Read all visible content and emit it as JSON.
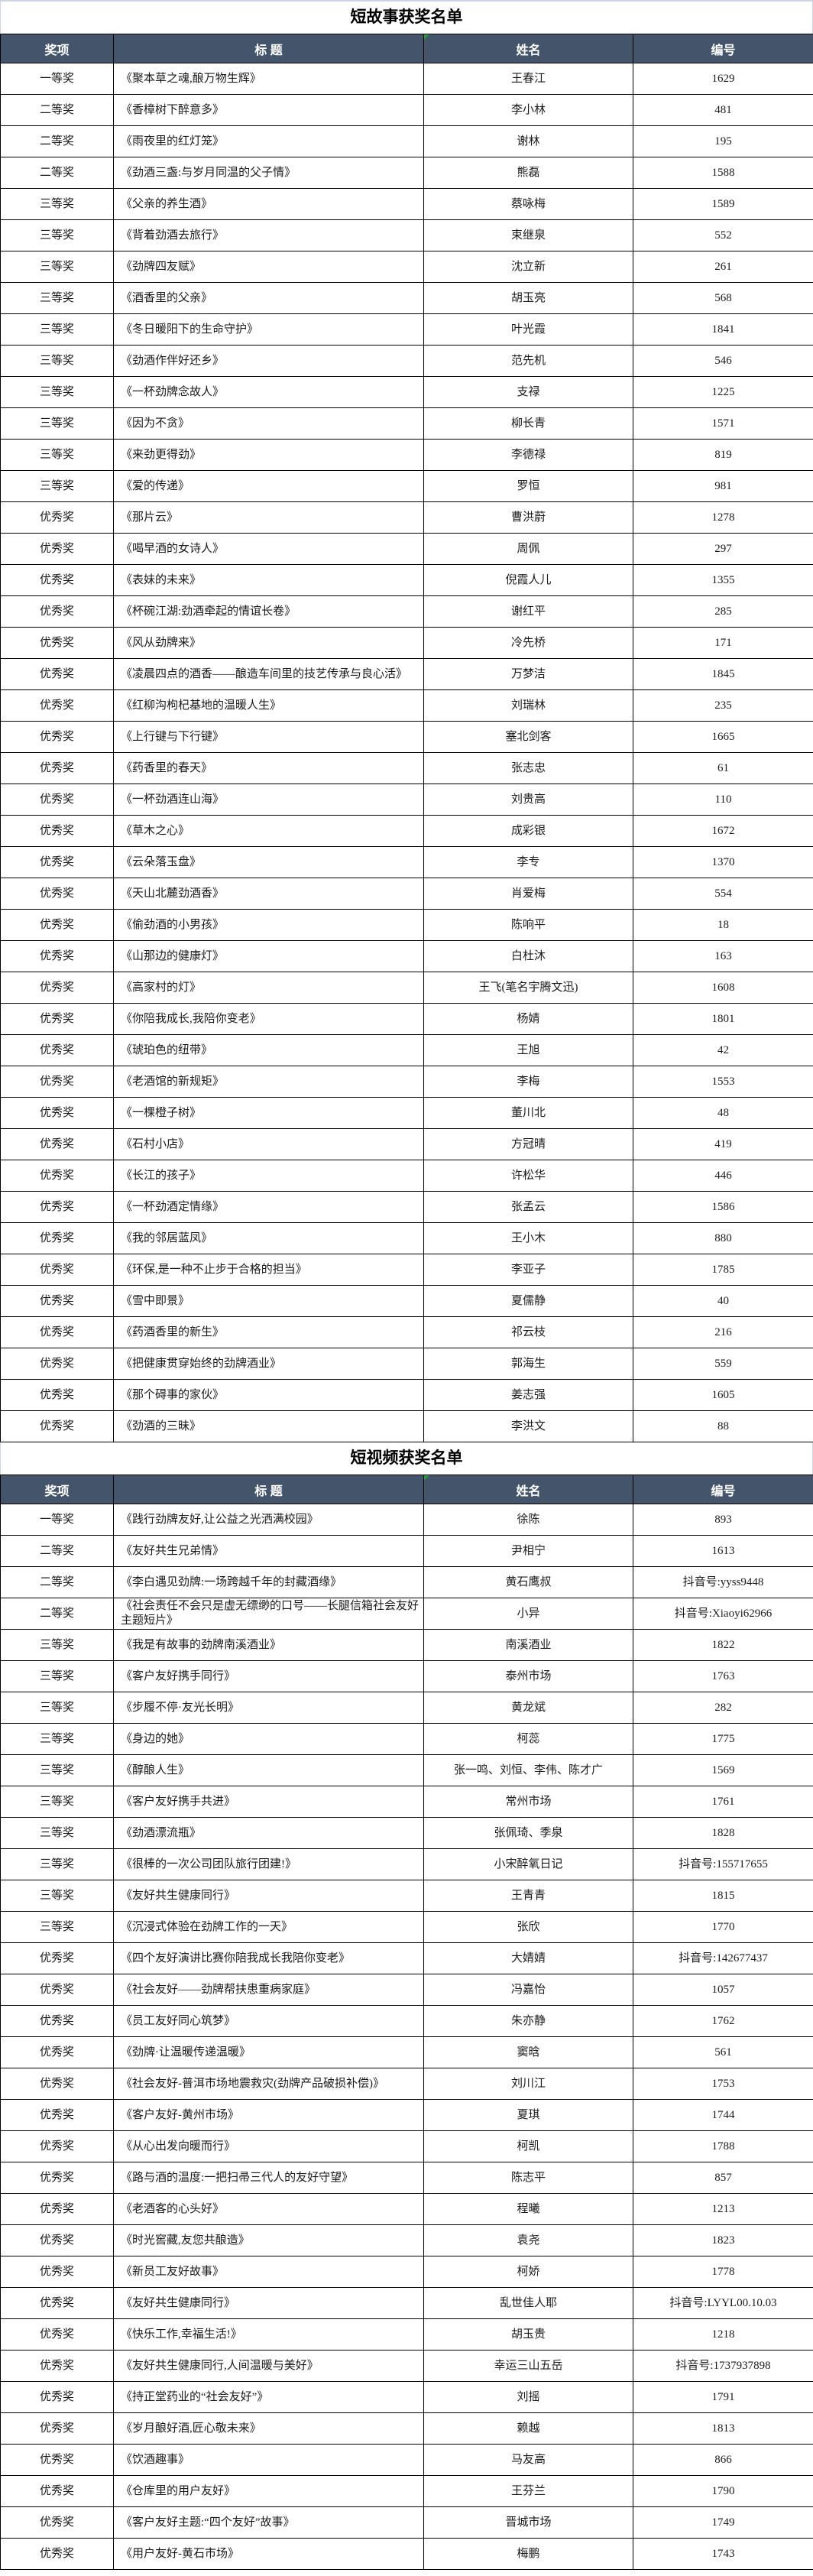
{
  "colors": {
    "header_bg": "#44546A",
    "header_text": "#FFFFFF",
    "cell_border": "#000000",
    "sheet_gridline": "#CCD5E3",
    "corner_flag_green": "#21A038"
  },
  "tables": [
    {
      "title": "短故事获奖名单",
      "headers": [
        "奖项",
        "标  题",
        "姓名",
        "编号"
      ],
      "rows": [
        [
          "一等奖",
          "《聚本草之魂,酿万物生辉》",
          "王春江",
          "1629"
        ],
        [
          "二等奖",
          "《香樟树下醉意多》",
          "李小林",
          "481"
        ],
        [
          "二等奖",
          "《雨夜里的红灯笼》",
          "谢林",
          "195"
        ],
        [
          "二等奖",
          "《劲酒三盏:与岁月同温的父子情》",
          "熊磊",
          "1588"
        ],
        [
          "三等奖",
          "《父亲的养生酒》",
          "蔡咏梅",
          "1589"
        ],
        [
          "三等奖",
          "《背着劲酒去旅行》",
          "束继泉",
          "552"
        ],
        [
          "三等奖",
          "《劲牌四友赋》",
          "沈立新",
          "261"
        ],
        [
          "三等奖",
          "《酒香里的父亲》",
          "胡玉亮",
          "568"
        ],
        [
          "三等奖",
          "《冬日暖阳下的生命守护》",
          "叶光霞",
          "1841"
        ],
        [
          "三等奖",
          "《劲酒作伴好还乡》",
          "范先机",
          "546"
        ],
        [
          "三等奖",
          "《一杯劲牌念故人》",
          "支禄",
          "1225"
        ],
        [
          "三等奖",
          "《因为不贪》",
          "柳长青",
          "1571"
        ],
        [
          "三等奖",
          "《来劲更得劲》",
          "李德禄",
          "819"
        ],
        [
          "三等奖",
          "《爱的传递》",
          "罗恒",
          "981"
        ],
        [
          "优秀奖",
          "《那片云》",
          "曹洪蔚",
          "1278"
        ],
        [
          "优秀奖",
          "《喝早酒的女诗人》",
          "周佩",
          "297"
        ],
        [
          "优秀奖",
          "《表妹的未来》",
          "倪霞人儿",
          "1355"
        ],
        [
          "优秀奖",
          "《杯碗江湖:劲酒牵起的情谊长卷》",
          "谢红平",
          "285"
        ],
        [
          "优秀奖",
          "《风从劲牌来》",
          "冷先桥",
          "171"
        ],
        [
          "优秀奖",
          "《凌晨四点的酒香——酿造车间里的技艺传承与良心活》",
          "万梦洁",
          "1845"
        ],
        [
          "优秀奖",
          "《红柳沟枸杞基地的温暖人生》",
          "刘瑞林",
          "235"
        ],
        [
          "优秀奖",
          "《上行键与下行键》",
          "塞北剑客",
          "1665"
        ],
        [
          "优秀奖",
          "《药香里的春天》",
          "张志忠",
          "61"
        ],
        [
          "优秀奖",
          "《一杯劲酒连山海》",
          "刘贵高",
          "110"
        ],
        [
          "优秀奖",
          "《草木之心》",
          "成彩银",
          "1672"
        ],
        [
          "优秀奖",
          "《云朵落玉盘》",
          "李专",
          "1370"
        ],
        [
          "优秀奖",
          "《天山北麓劲酒香》",
          "肖爱梅",
          "554"
        ],
        [
          "优秀奖",
          "《偷劲酒的小男孩》",
          "陈响平",
          "18"
        ],
        [
          "优秀奖",
          "《山那边的健康灯》",
          "白杜沐",
          "163"
        ],
        [
          "优秀奖",
          "《高家村的灯》",
          "王飞(笔名宇腾文迅)",
          "1608"
        ],
        [
          "优秀奖",
          "《你陪我成长,我陪你变老》",
          "杨婧",
          "1801"
        ],
        [
          "优秀奖",
          "《琥珀色的纽带》",
          "王旭",
          "42"
        ],
        [
          "优秀奖",
          "《老酒馆的新规矩》",
          "李梅",
          "1553"
        ],
        [
          "优秀奖",
          "《一棵橙子树》",
          "董川北",
          "48"
        ],
        [
          "优秀奖",
          "《石村小店》",
          "方冠晴",
          "419"
        ],
        [
          "优秀奖",
          "《长江的孩子》",
          "许松华",
          "446"
        ],
        [
          "优秀奖",
          "《一杯劲酒定情缘》",
          "张孟云",
          "1586"
        ],
        [
          "优秀奖",
          "《我的邻居蓝凤》",
          "王小木",
          "880"
        ],
        [
          "优秀奖",
          "《环保,是一种不止步于合格的担当》",
          "李亚子",
          "1785"
        ],
        [
          "优秀奖",
          "《雪中即景》",
          "夏儒静",
          "40"
        ],
        [
          "优秀奖",
          "《药酒香里的新生》",
          "祁云枝",
          "216"
        ],
        [
          "优秀奖",
          "《把健康贯穿始终的劲牌酒业》",
          "郭海生",
          "559"
        ],
        [
          "优秀奖",
          "《那个碍事的家伙》",
          "姜志强",
          "1605"
        ],
        [
          "优秀奖",
          "《劲酒的三昧》",
          "李洪文",
          "88"
        ]
      ]
    },
    {
      "title": "短视频获奖名单",
      "headers": [
        "奖项",
        "标  题",
        "姓名",
        "编号"
      ],
      "rows": [
        [
          "一等奖",
          "《践行劲牌友好,让公益之光洒满校园》",
          "徐陈",
          "893"
        ],
        [
          "二等奖",
          "《友好共生兄弟情》",
          "尹相宁",
          "1613"
        ],
        [
          "二等奖",
          "《李白遇见劲牌:一场跨越千年的封藏酒缘》",
          "黄石鹰叔",
          "抖音号:yyss9448"
        ],
        [
          "二等奖",
          "《社会责任不会只是虚无缥缈的口号——长腿信箱社会友好主题短片》",
          "小异",
          "抖音号:Xiaoyi62966"
        ],
        [
          "三等奖",
          "《我是有故事的劲牌南溪酒业》",
          "南溪酒业",
          "1822"
        ],
        [
          "三等奖",
          "《客户友好携手同行》",
          "泰州市场",
          "1763"
        ],
        [
          "三等奖",
          "《步履不停·友光长明》",
          "黄龙斌",
          "282"
        ],
        [
          "三等奖",
          "《身边的她》",
          "柯蕊",
          "1775"
        ],
        [
          "三等奖",
          "《醇酿人生》",
          "张一鸣、刘恒、李伟、陈才广",
          "1569"
        ],
        [
          "三等奖",
          "《客户友好携手共进》",
          "常州市场",
          "1761"
        ],
        [
          "三等奖",
          "《劲酒漂流瓶》",
          "张佩琦、季泉",
          "1828"
        ],
        [
          "三等奖",
          "《很棒的一次公司团队旅行团建!》",
          "小宋醉氧日记",
          "抖音号:155717655"
        ],
        [
          "三等奖",
          "《友好共生健康同行》",
          "王青青",
          "1815"
        ],
        [
          "三等奖",
          "《沉浸式体验在劲牌工作的一天》",
          "张欣",
          "1770"
        ],
        [
          "优秀奖",
          "《四个友好演讲比赛你陪我成长我陪你变老》",
          "大婧婧",
          "抖音号:142677437"
        ],
        [
          "优秀奖",
          "《社会友好——劲牌帮扶患重病家庭》",
          "冯嘉怡",
          "1057"
        ],
        [
          "优秀奖",
          "《员工友好同心筑梦》",
          "朱亦静",
          "1762"
        ],
        [
          "优秀奖",
          "《劲牌·让温暖传递温暖》",
          "窦晗",
          "561"
        ],
        [
          "优秀奖",
          "《社会友好-普洱市场地震救灾(劲牌产品破损补偿)》",
          "刘川江",
          "1753"
        ],
        [
          "优秀奖",
          "《客户友好-黄州市场》",
          "夏琪",
          "1744"
        ],
        [
          "优秀奖",
          "《从心出发向暖而行》",
          "柯凯",
          "1788"
        ],
        [
          "优秀奖",
          "《路与酒的温度:一把扫帚三代人的友好守望》",
          "陈志平",
          "857"
        ],
        [
          "优秀奖",
          "《老酒客的心头好》",
          "程曦",
          "1213"
        ],
        [
          "优秀奖",
          "《时光窖藏,友您共酿造》",
          "袁尧",
          "1823"
        ],
        [
          "优秀奖",
          "《新员工友好故事》",
          "柯娇",
          "1778"
        ],
        [
          "优秀奖",
          "《友好共生健康同行》",
          "乱世佳人耶",
          "抖音号:LYYL00.10.03"
        ],
        [
          "优秀奖",
          "《快乐工作,幸福生活!》",
          "胡玉贵",
          "1218"
        ],
        [
          "优秀奖",
          "《友好共生健康同行,人间温暖与美好》",
          "幸运三山五岳",
          "抖音号:1737937898"
        ],
        [
          "优秀奖",
          "《持正堂药业的“社会友好”》",
          "刘摇",
          "1791"
        ],
        [
          "优秀奖",
          "《岁月酿好酒,匠心敬未来》",
          "赖越",
          "1813"
        ],
        [
          "优秀奖",
          "《饮酒趣事》",
          "马友高",
          "866"
        ],
        [
          "优秀奖",
          "《仓库里的用户友好》",
          "王芬兰",
          "1790"
        ],
        [
          "优秀奖",
          "《客户友好主题:“四个友好”故事》",
          "晋城市场",
          "1749"
        ],
        [
          "优秀奖",
          "《用户友好-黄石市场》",
          "梅鹏",
          "1743"
        ]
      ]
    }
  ]
}
